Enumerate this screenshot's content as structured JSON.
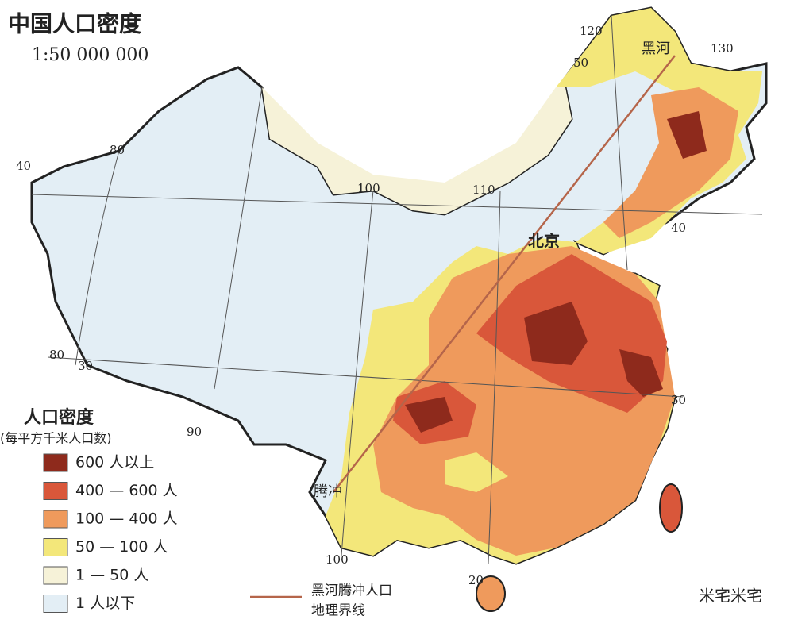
{
  "header": {
    "title": "中国人口密度",
    "scale": "1:50 000 000"
  },
  "grid_labels": [
    "120",
    "130",
    "50",
    "80",
    "40",
    "100",
    "110",
    "40",
    "30",
    "80",
    "30",
    "90",
    "20",
    "100"
  ],
  "places": [
    {
      "label": "黑河"
    },
    {
      "label": "北京"
    },
    {
      "label": "腾冲"
    }
  ],
  "boundary_line": {
    "label_line1": "黑河腾冲人口",
    "label_line2": "地理界线",
    "color": "#b5654a"
  },
  "legend": {
    "title": "人口密度",
    "subtitle": "(每平方千米人口数)",
    "items": [
      {
        "label": "600 人以上",
        "color": "#8e2a1c"
      },
      {
        "label": "400 — 600 人",
        "color": "#d9573a"
      },
      {
        "label": "100 — 400 人",
        "color": "#ef9a5c"
      },
      {
        "label": "50 — 100 人",
        "color": "#f3e77a"
      },
      {
        "label": "1 — 50 人",
        "color": "#f6f2d8"
      },
      {
        "label": "1 人以下",
        "color": "#e3eef5"
      }
    ]
  },
  "watermark": "米宅米宅"
}
